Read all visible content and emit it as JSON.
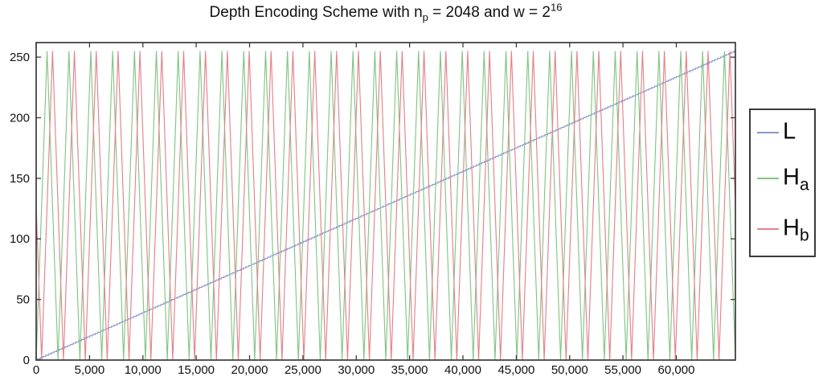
{
  "title": {
    "part1": "Depth Encoding Scheme with n",
    "sub": "p",
    "part2": " = 2048 and w = 2",
    "sup": "16",
    "full_text": "Depth Encoding Scheme with n_p = 2048 and w = 2^16"
  },
  "chart_data": {
    "type": "line",
    "title": "Depth Encoding Scheme with n_p = 2048 and w = 2^16",
    "xlabel": "",
    "ylabel": "",
    "xlim": [
      0,
      65536
    ],
    "ylim": [
      0,
      262
    ],
    "grid": false,
    "x_ticks": {
      "values": [
        0,
        5000,
        10000,
        15000,
        20000,
        25000,
        30000,
        35000,
        40000,
        45000,
        50000,
        55000,
        60000
      ],
      "labels": [
        "0",
        "5,000",
        "10,000",
        "15,000",
        "20,000",
        "25,000",
        "30,000",
        "35,000",
        "40,000",
        "45,000",
        "50,000",
        "55,000",
        "60,000"
      ]
    },
    "y_ticks": {
      "values": [
        0,
        50,
        100,
        150,
        200,
        250
      ],
      "labels": [
        "0",
        "50",
        "100",
        "150",
        "200",
        "250"
      ]
    },
    "series": [
      {
        "name": "L",
        "color": "#8898ce",
        "model": "linear-quantized",
        "levels": 256,
        "domain_max": 65535,
        "value_range": [
          0,
          255
        ],
        "description": "Linear ramp L(d)=round(255*d/65535): 0 at d=0 rising to 255 at d=65535, drawn as 256 quantized staircase steps"
      },
      {
        "name": "H_a",
        "color": "#84c584",
        "model": "triangle",
        "period": 2048,
        "phase": 0,
        "amplitude": [
          0,
          255
        ],
        "n_periods": 32,
        "description": "Triangle wave: 0 at d=0, peak 255 at d=1024, back to 0 at d=2048; 32 periods across the axis"
      },
      {
        "name": "H_b",
        "color": "#e2838a",
        "model": "triangle",
        "period": 2048,
        "phase": 512,
        "amplitude": [
          0,
          255
        ],
        "n_periods": 32,
        "description": "Same triangle wave as H_a shifted right by 512 (quarter period); value ~127 descending at d=0"
      }
    ],
    "legend": {
      "position": "right-outside",
      "entries": [
        {
          "label_main": "L",
          "label_sub": "",
          "series": "L"
        },
        {
          "label_main": "H",
          "label_sub": "a",
          "series": "H_a"
        },
        {
          "label_main": "H",
          "label_sub": "b",
          "series": "H_b"
        }
      ]
    },
    "axis_color": "#3a3a3a",
    "tick_label_color": "#111111"
  }
}
